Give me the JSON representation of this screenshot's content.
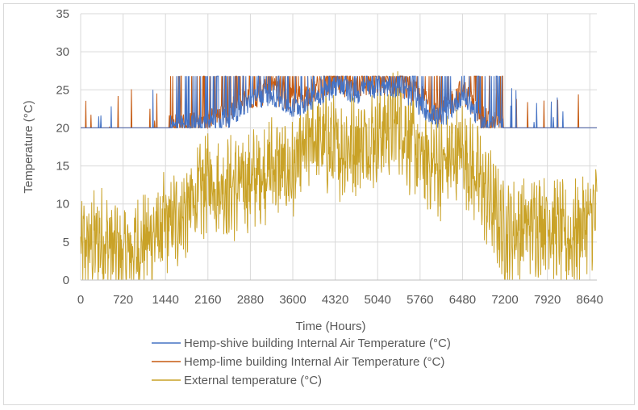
{
  "chart_data": {
    "type": "line",
    "title": "",
    "xlabel": "Time (Hours)",
    "ylabel": "Temperature (°C)",
    "xlim": [
      0,
      8760
    ],
    "ylim": [
      0,
      35
    ],
    "x_ticks": [
      "0",
      "720",
      "1440",
      "2160",
      "2880",
      "3600",
      "4320",
      "5040",
      "5760",
      "6480",
      "7200",
      "7920",
      "8640"
    ],
    "y_ticks": [
      "0",
      "5",
      "10",
      "15",
      "20",
      "25",
      "30",
      "35"
    ],
    "grid": true,
    "legend_position": "bottom",
    "series": [
      {
        "name": "Hemp-shive building Internal Air Temperature  (°C)",
        "color": "#4472c4",
        "note": "approximate daily envelope values read from chart",
        "x": [
          0,
          360,
          720,
          1080,
          1440,
          1800,
          2160,
          2520,
          2880,
          3240,
          3600,
          3960,
          4320,
          4680,
          5040,
          5400,
          5760,
          6120,
          6480,
          6840,
          7200,
          7560,
          7920,
          8280,
          8640,
          8760
        ],
        "values": [
          20,
          20,
          20,
          20,
          20,
          20.2,
          20.5,
          21.5,
          23.5,
          24.5,
          22.5,
          24,
          25.5,
          24.5,
          25.5,
          25.5,
          23,
          21,
          24.5,
          20.5,
          20,
          20,
          20,
          20,
          20,
          20
        ]
      },
      {
        "name": "Hemp-lime building Internal Air Temperature  (°C)",
        "color": "#c55a11",
        "note": "approximate daily envelope values read from chart",
        "x": [
          0,
          360,
          720,
          1080,
          1440,
          1800,
          2160,
          2520,
          2880,
          3240,
          3600,
          3960,
          4320,
          4680,
          5040,
          5400,
          5760,
          6120,
          6480,
          6840,
          7200,
          7560,
          7920,
          8280,
          8640,
          8760
        ],
        "values": [
          20,
          20,
          20,
          20,
          20,
          20.3,
          20.8,
          22,
          24,
          25,
          23.5,
          25,
          26,
          25.5,
          26,
          26,
          24,
          22,
          25,
          21,
          20,
          20,
          20,
          20,
          20,
          20
        ]
      },
      {
        "name": "External temperature (°C)",
        "color": "#c9a227",
        "note": "approximate smoothed trend read from chart",
        "x": [
          0,
          360,
          720,
          1080,
          1440,
          1800,
          2160,
          2520,
          2880,
          3240,
          3600,
          3960,
          4320,
          4680,
          5040,
          5400,
          5760,
          6120,
          6480,
          6840,
          7200,
          7560,
          7920,
          8280,
          8640,
          8760
        ],
        "values": [
          4,
          5.5,
          3,
          5,
          7,
          9,
          13,
          12,
          13,
          15,
          14,
          19,
          17,
          18,
          19,
          21,
          16,
          15,
          17,
          12,
          6,
          7,
          8,
          5,
          8,
          9
        ]
      }
    ]
  }
}
